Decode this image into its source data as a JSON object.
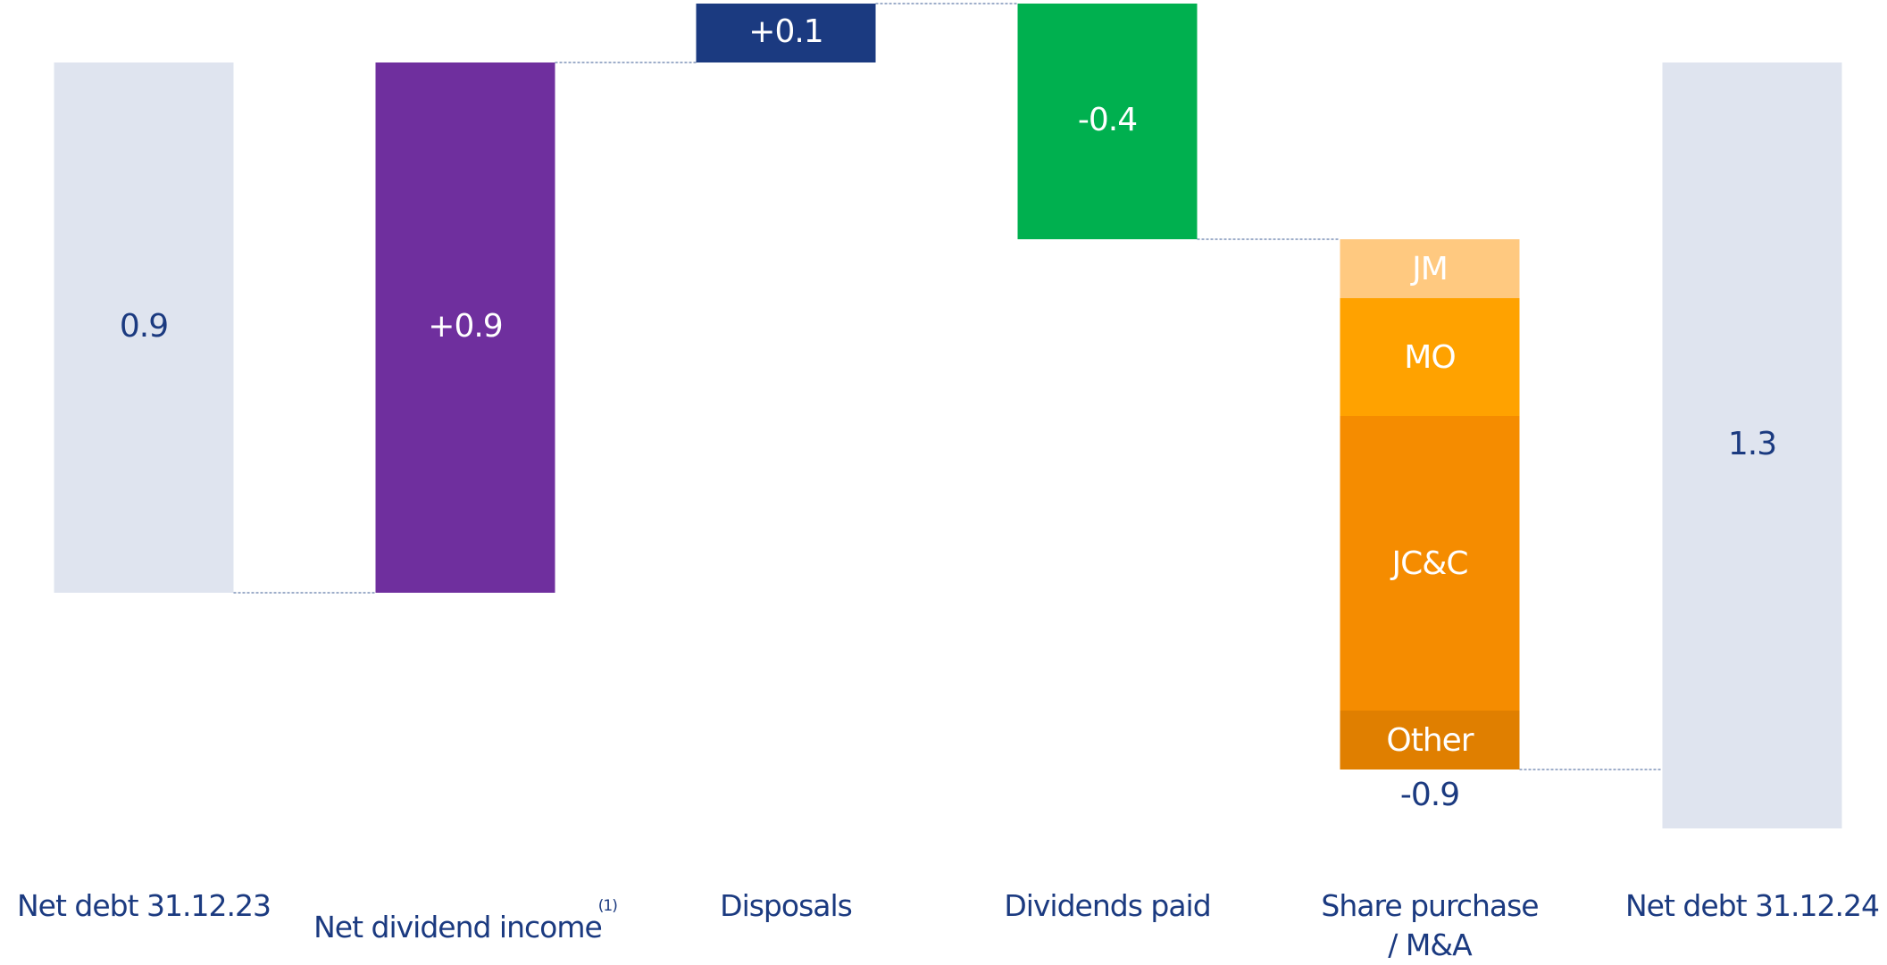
{
  "chart_data": {
    "type": "waterfall",
    "categories": [
      "Net debt 31.12.23",
      "Net dividend income",
      "Disposals",
      "Dividends paid",
      "Share purchase\n/ M&A",
      "Net debt 31.12.24"
    ],
    "footnotes": [
      null,
      "(1)",
      null,
      null,
      null,
      null
    ],
    "kinds": [
      "total",
      "delta",
      "delta",
      "delta",
      "delta",
      "total"
    ],
    "values": [
      0.9,
      0.9,
      0.1,
      -0.4,
      -0.9,
      1.3
    ],
    "value_labels": [
      "0.9",
      "+0.9",
      "+0.1",
      "-0.4",
      "-0.9",
      "1.3"
    ],
    "colors": [
      "#dfe4ef",
      "#6f2f9e",
      "#1b3a80",
      "#00b04f",
      null,
      "#dfe4ef"
    ],
    "segments": {
      "category": 4,
      "names": [
        "JM",
        "MO",
        "JC&C",
        "Other"
      ],
      "values": [
        -0.1,
        -0.2,
        -0.5,
        -0.1
      ],
      "colors": [
        "#ffc980",
        "#ffa200",
        "#f58c00",
        "#e07f00"
      ]
    },
    "ylim": [
      -0.1,
      1.3
    ]
  }
}
